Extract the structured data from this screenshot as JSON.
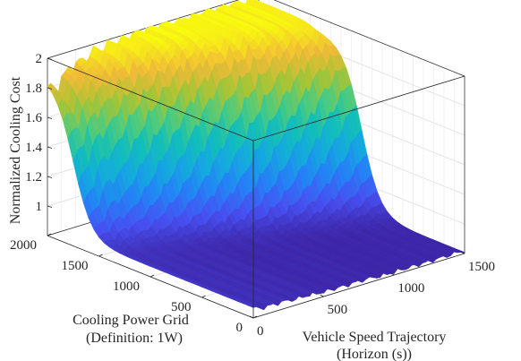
{
  "chart_data": {
    "type": "surface",
    "colormap": "parula",
    "grid": true,
    "box": true,
    "zlabel": "Normalized Cooling Cost",
    "xlabel_line1": "Vehicle Speed Trajectory",
    "xlabel_line2": "(Horizon (s))",
    "ylabel_line1": "Cooling Power Grid",
    "ylabel_line2": "(Definition: 1W)",
    "xlim": [
      0,
      1500
    ],
    "ylim": [
      0,
      2000
    ],
    "zlim": [
      0.8,
      2.0
    ],
    "x_ticks": [
      0,
      500,
      1000,
      1500
    ],
    "y_ticks": [
      0,
      500,
      1000,
      1500,
      2000
    ],
    "z_ticks": [
      1,
      1.2,
      1.4,
      1.6,
      1.8,
      2
    ],
    "z_tick_labels": [
      "1",
      "1.2",
      "1.4",
      "1.6",
      "1.8",
      "2"
    ],
    "surface_profile": {
      "x": [
        0,
        60,
        120,
        200,
        300,
        400,
        500,
        600,
        700,
        800,
        900,
        1000,
        1100,
        1200,
        1300,
        1400,
        1500
      ],
      "z_at_low_power": [
        0.87,
        0.85,
        0.85,
        0.85,
        0.84,
        0.84,
        0.83,
        0.83,
        0.83,
        0.83,
        0.82,
        0.82,
        0.82,
        0.82,
        0.82,
        0.82,
        0.82
      ],
      "z_at_high_power": [
        1.87,
        1.8,
        1.88,
        1.92,
        1.95,
        1.97,
        1.98,
        1.99,
        2.0,
        2.0,
        2.0,
        2.0,
        2.0,
        1.98,
        1.98,
        1.96,
        1.95
      ],
      "transition_power": [
        1750,
        1700,
        1650,
        1650,
        1600,
        1550,
        1500,
        1450,
        1400,
        1350,
        1300,
        1250,
        1200,
        1150,
        1100,
        1050,
        1000
      ],
      "ripple_amplitude": 0.06
    }
  }
}
